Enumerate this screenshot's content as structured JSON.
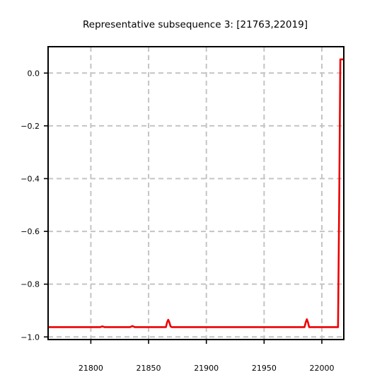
{
  "chart_data": {
    "type": "line",
    "title": "Representative subsequence 3: [21763,22019]",
    "xlabel": "",
    "ylabel": "",
    "xlim": [
      21763,
      22019
    ],
    "ylim": [
      -1.01,
      0.1
    ],
    "xticks": [
      21800,
      21850,
      21900,
      21950,
      22000
    ],
    "xtick_labels": [
      "21800",
      "21850",
      "21900",
      "21950",
      "22000"
    ],
    "yticks": [
      0.0,
      -0.2,
      -0.4,
      -0.6,
      -0.8,
      -1.0
    ],
    "ytick_labels": [
      "0.0",
      "−0.2",
      "−0.4",
      "−0.6",
      "−0.8",
      "−1.0"
    ],
    "grid": true,
    "series": [
      {
        "color": "#ee0000",
        "x": [
          21763,
          21808,
          21810,
          21812,
          21834,
          21836,
          21838,
          21865,
          21866,
          21867,
          21868,
          21869,
          21870,
          21985,
          21986,
          21987,
          21988,
          21989,
          22014,
          22015,
          22016,
          22019
        ],
        "y": [
          -0.963,
          -0.963,
          -0.96,
          -0.963,
          -0.963,
          -0.959,
          -0.963,
          -0.963,
          -0.945,
          -0.935,
          -0.945,
          -0.96,
          -0.963,
          -0.963,
          -0.945,
          -0.933,
          -0.945,
          -0.963,
          -0.963,
          -0.5,
          0.052,
          0.052
        ]
      }
    ]
  }
}
